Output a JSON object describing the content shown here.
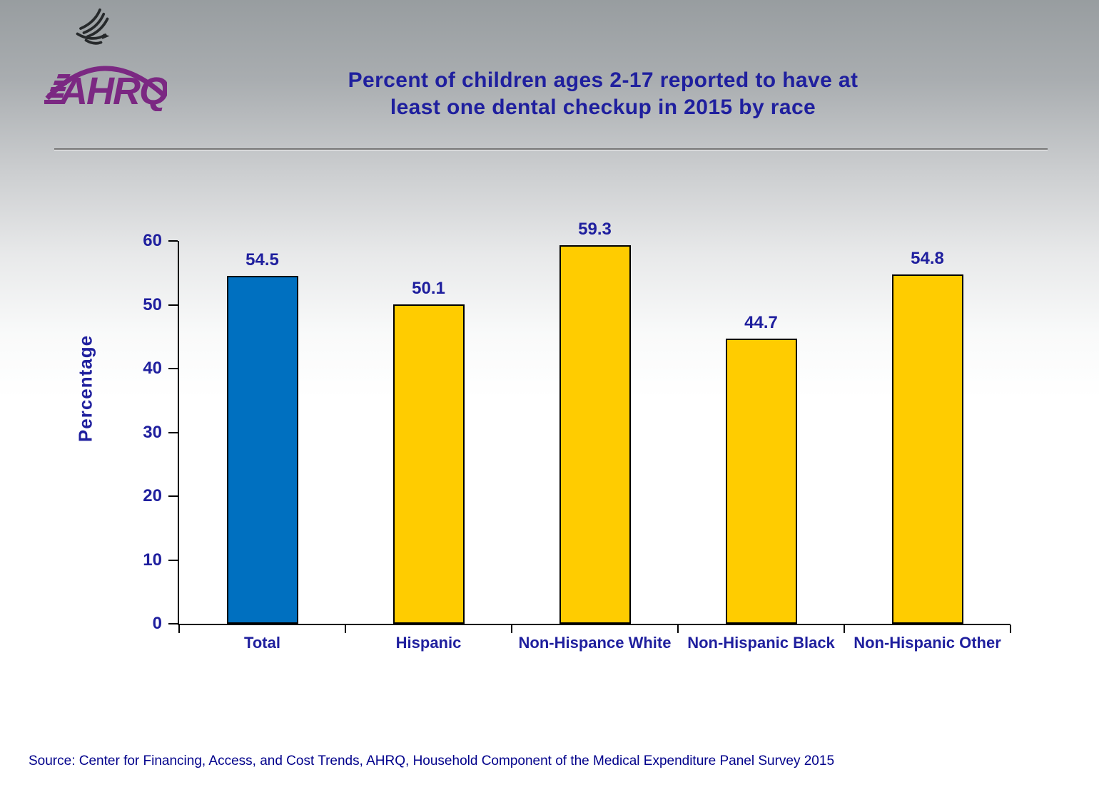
{
  "header": {
    "title_line1": "Percent of children ages 2-17 reported to have at",
    "title_line2": "least one dental checkup in 2015 by race",
    "logo_text": "AHRQ"
  },
  "chart_data": {
    "type": "bar",
    "title": "Percent of children ages 2-17 reported to have at least one dental checkup in 2015 by race",
    "categories": [
      "Total",
      "Hispanic",
      "Non-Hispance White",
      "Non-Hispanic Black",
      "Non-Hispanic Other"
    ],
    "values": [
      54.5,
      50.1,
      59.3,
      44.7,
      54.8
    ],
    "value_labels": [
      "54.5",
      "50.1",
      "59.3",
      "44.7",
      "54.8"
    ],
    "bar_colors": [
      "#0070C0",
      "#FFCC00",
      "#FFCC00",
      "#FFCC00",
      "#FFCC00"
    ],
    "xlabel": "",
    "ylabel": "Percentage",
    "ylim": [
      0,
      60
    ],
    "yticks": [
      0,
      10,
      20,
      30,
      40,
      50,
      60
    ],
    "grid": false,
    "legend": false
  },
  "footer": {
    "source": "Source: Center for Financing, Access, and Cost Trends, AHRQ, Household Component of the Medical Expenditure Panel Survey 2015"
  },
  "colors": {
    "text_navy": "#1F1F9E",
    "source_navy": "#00008B",
    "bar_blue": "#0070C0",
    "bar_yellow": "#FFCC00",
    "logo_purple": "#7B2882",
    "bar_border": "#000000"
  }
}
